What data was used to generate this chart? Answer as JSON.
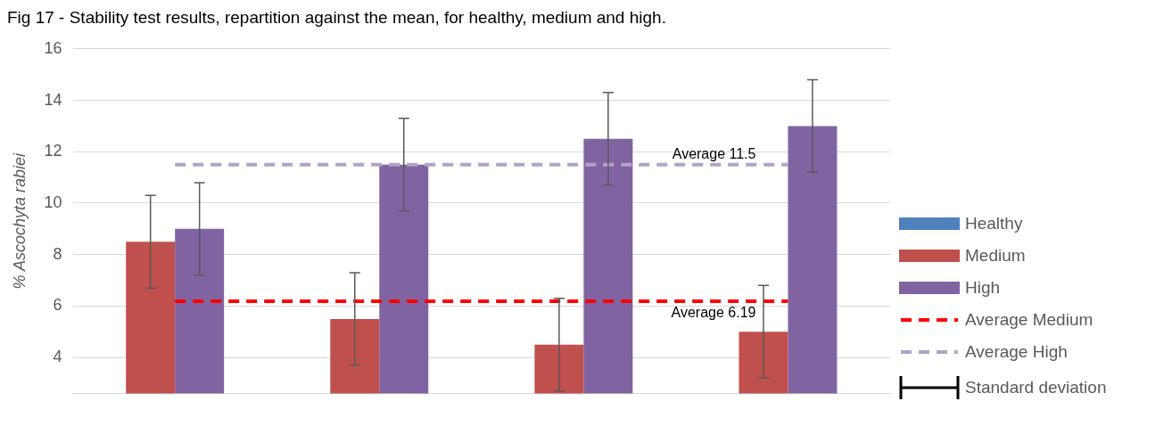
{
  "chart_data": {
    "type": "bar",
    "title": "Fig 17 - Stability test results, repartition against the mean, for healthy, medium and high.",
    "ylabel": "% Ascochyta rabiei",
    "categories": [
      null,
      null,
      null,
      null
    ],
    "series": [
      {
        "name": "Healthy",
        "color": "#4f81bd",
        "values": [
          null,
          null,
          null,
          null
        ]
      },
      {
        "name": "Medium",
        "color": "#c0504d",
        "values": [
          8.5,
          5.5,
          4.5,
          5.0
        ],
        "errors": [
          1.8,
          1.8,
          1.8,
          1.8
        ]
      },
      {
        "name": "High",
        "color": "#8064a2",
        "values": [
          9.0,
          11.5,
          12.5,
          13.0
        ],
        "errors": [
          1.8,
          1.8,
          1.8,
          1.8
        ]
      },
      {
        "name": "Average Medium",
        "type": "line",
        "line_style": "dashed",
        "color": "#ff0000",
        "values": [
          6.19,
          6.19,
          6.19,
          6.19
        ]
      },
      {
        "name": "Average High",
        "type": "line",
        "line_style": "dashed",
        "color": "#b3a2c7",
        "values": [
          11.5,
          11.5,
          11.5,
          11.5
        ]
      }
    ],
    "annotations": [
      "Standard deviation",
      {
        "text": "Average 11.5",
        "y": 11.5
      },
      {
        "text": "Average 6.19",
        "y": 6.19
      }
    ],
    "ylim": [
      2.6,
      16
    ],
    "yticks": [
      4,
      6,
      8,
      10,
      12,
      14,
      16
    ],
    "grid": "y",
    "legend": "right"
  }
}
